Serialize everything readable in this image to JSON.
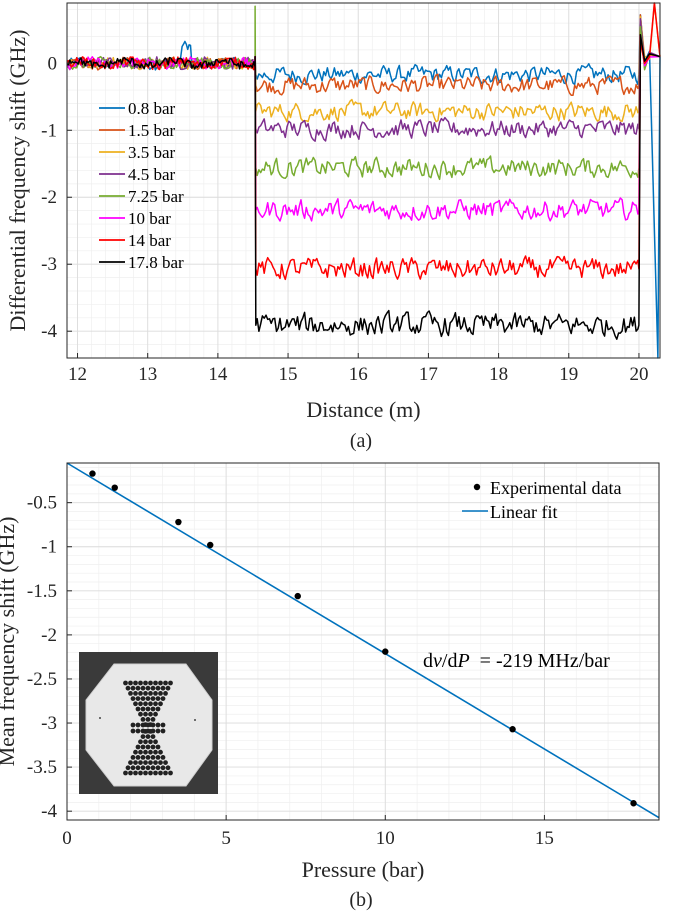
{
  "chart_data": [
    {
      "type": "line",
      "caption": "(a)",
      "xlabel": "Distance (m)",
      "ylabel": "Differential frequency shift (GHz)",
      "xlim": [
        11.85,
        20.3
      ],
      "ylim": [
        -4.4,
        0.9
      ],
      "xticks": [
        12,
        13,
        14,
        15,
        16,
        17,
        18,
        19,
        20
      ],
      "yticks": [
        0,
        -1,
        -2,
        -3,
        -4
      ],
      "grid": true,
      "legend_position": "left",
      "segment_breaks": [
        14.53,
        20.0
      ],
      "series": [
        {
          "name": "0.8 bar",
          "color": "#0072BD",
          "level": -0.17
        },
        {
          "name": "1.5 bar",
          "color": "#D95319",
          "level": -0.33
        },
        {
          "name": "3.5 bar",
          "color": "#EDB120",
          "level": -0.72
        },
        {
          "name": "4.5 bar",
          "color": "#7E2F8E",
          "level": -0.98
        },
        {
          "name": "7.25 bar",
          "color": "#77AC30",
          "level": -1.56
        },
        {
          "name": "10 bar",
          "color": "#FF00FF",
          "level": -2.19
        },
        {
          "name": "14 bar",
          "color": "#FF0000",
          "level": -3.07
        },
        {
          "name": "17.8 bar",
          "color": "#000000",
          "level": -3.91
        }
      ]
    },
    {
      "type": "scatter",
      "caption": "(b)",
      "xlabel": "Pressure (bar)",
      "ylabel": "Mean frequency shift (GHz)",
      "xlim": [
        0,
        18.6
      ],
      "ylim": [
        -4.1,
        -0.05
      ],
      "xticks": [
        0,
        5,
        10,
        15
      ],
      "yticks": [
        -0.5,
        -1,
        -1.5,
        -2,
        -2.5,
        -3,
        -3.5,
        -4
      ],
      "ytick_labels": [
        "-0.5",
        "-1",
        "-1.5",
        "-2",
        "-2.5",
        "-3",
        "-3.5",
        "-4"
      ],
      "grid": true,
      "legend_position": "top-right",
      "series": [
        {
          "name": "Experimental data",
          "x": [
            0.8,
            1.5,
            3.5,
            4.5,
            7.25,
            10,
            14,
            17.8
          ],
          "y": [
            -0.17,
            -0.33,
            -0.72,
            -0.98,
            -1.56,
            -2.19,
            -3.07,
            -3.91
          ]
        },
        {
          "name": "Linear fit",
          "slope": -0.219,
          "intercept": 0.0,
          "color": "#0072BD"
        }
      ],
      "annotation": {
        "prefix": "d",
        "nu": "ν",
        "slash": "/d",
        "p": "P",
        "rest": "  = -219 MHz/bar"
      },
      "inset": "fiber-cross-section-micrograph"
    }
  ]
}
